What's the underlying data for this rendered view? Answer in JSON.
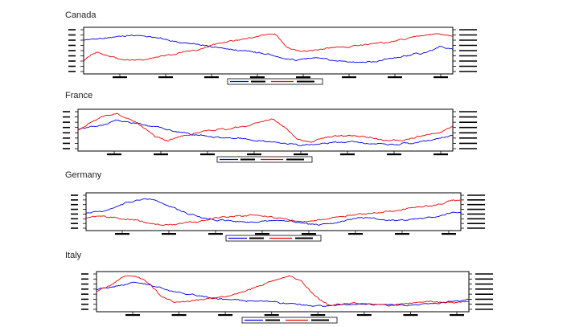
{
  "colors": {
    "series_a": "#0000ee",
    "series_b": "#ee0000",
    "axis": "#000000",
    "background": "#ffffff"
  },
  "chart_data": [
    {
      "type": "line",
      "title": "Canada",
      "dual_axis": true,
      "legend_placement": "bottom-center",
      "left_range": [
        0,
        1
      ],
      "right_range": [
        0,
        1
      ],
      "series": [
        {
          "color": "#0000ee",
          "axis": "left",
          "values": [
            0.76,
            0.78,
            0.82,
            0.85,
            0.88,
            0.85,
            0.8,
            0.72,
            0.68,
            0.66,
            0.6,
            0.55,
            0.5,
            0.48,
            0.44,
            0.38,
            0.3,
            0.26,
            0.34,
            0.3,
            0.24,
            0.22,
            0.2,
            0.24,
            0.3,
            0.36,
            0.42,
            0.46,
            0.6,
            0.52
          ]
        },
        {
          "color": "#ee0000",
          "axis": "right",
          "values": [
            0.26,
            0.46,
            0.38,
            0.28,
            0.26,
            0.3,
            0.36,
            0.4,
            0.48,
            0.52,
            0.62,
            0.7,
            0.76,
            0.8,
            0.88,
            0.92,
            0.58,
            0.48,
            0.5,
            0.56,
            0.58,
            0.6,
            0.64,
            0.68,
            0.7,
            0.78,
            0.84,
            0.88,
            0.9,
            0.84
          ]
        }
      ]
    },
    {
      "type": "line",
      "title": "France",
      "dual_axis": true,
      "legend_placement": "bottom-center",
      "left_range": [
        0,
        1
      ],
      "right_range": [
        0,
        1
      ],
      "series": [
        {
          "color": "#0000ee",
          "axis": "left",
          "values": [
            0.52,
            0.58,
            0.66,
            0.78,
            0.72,
            0.66,
            0.58,
            0.5,
            0.44,
            0.38,
            0.34,
            0.3,
            0.28,
            0.26,
            0.22,
            0.18,
            0.14,
            0.1,
            0.1,
            0.14,
            0.18,
            0.18,
            0.16,
            0.14,
            0.12,
            0.14,
            0.16,
            0.2,
            0.28,
            0.36
          ]
        },
        {
          "color": "#ee0000",
          "axis": "right",
          "values": [
            0.5,
            0.72,
            0.88,
            0.96,
            0.8,
            0.6,
            0.32,
            0.22,
            0.34,
            0.42,
            0.48,
            0.52,
            0.56,
            0.62,
            0.72,
            0.8,
            0.58,
            0.26,
            0.18,
            0.3,
            0.34,
            0.36,
            0.32,
            0.28,
            0.22,
            0.24,
            0.3,
            0.38,
            0.44,
            0.6
          ]
        }
      ]
    },
    {
      "type": "line",
      "title": "Germany",
      "dual_axis": true,
      "legend_placement": "bottom-center",
      "left_range": [
        0,
        1
      ],
      "right_range": [
        0,
        1
      ],
      "series": [
        {
          "color": "#0000ee",
          "axis": "left",
          "values": [
            0.44,
            0.5,
            0.6,
            0.76,
            0.84,
            0.88,
            0.74,
            0.58,
            0.44,
            0.32,
            0.26,
            0.22,
            0.2,
            0.2,
            0.22,
            0.24,
            0.2,
            0.14,
            0.1,
            0.14,
            0.24,
            0.3,
            0.32,
            0.26,
            0.22,
            0.26,
            0.3,
            0.36,
            0.44,
            0.5
          ]
        },
        {
          "color": "#ee0000",
          "axis": "right",
          "values": [
            0.3,
            0.38,
            0.34,
            0.28,
            0.24,
            0.14,
            0.08,
            0.12,
            0.18,
            0.24,
            0.32,
            0.36,
            0.36,
            0.4,
            0.34,
            0.3,
            0.24,
            0.2,
            0.26,
            0.32,
            0.36,
            0.42,
            0.44,
            0.48,
            0.54,
            0.6,
            0.64,
            0.7,
            0.8,
            0.88
          ]
        }
      ]
    },
    {
      "type": "line",
      "title": "Italy",
      "dual_axis": true,
      "legend_placement": "bottom-center",
      "left_range": [
        0,
        1
      ],
      "right_range": [
        0,
        1
      ],
      "series": [
        {
          "color": "#0000ee",
          "axis": "left",
          "values": [
            0.55,
            0.6,
            0.68,
            0.78,
            0.7,
            0.6,
            0.5,
            0.44,
            0.38,
            0.32,
            0.28,
            0.26,
            0.24,
            0.22,
            0.2,
            0.16,
            0.12,
            0.1,
            0.1,
            0.12,
            0.14,
            0.14,
            0.12,
            0.12,
            0.12,
            0.14,
            0.16,
            0.2,
            0.24,
            0.3
          ]
        },
        {
          "color": "#ee0000",
          "axis": "right",
          "values": [
            0.5,
            0.66,
            0.9,
            0.96,
            0.76,
            0.4,
            0.2,
            0.22,
            0.28,
            0.32,
            0.36,
            0.46,
            0.56,
            0.72,
            0.84,
            0.94,
            0.78,
            0.38,
            0.12,
            0.14,
            0.18,
            0.16,
            0.14,
            0.12,
            0.16,
            0.2,
            0.22,
            0.2,
            0.2,
            0.24
          ]
        }
      ]
    }
  ]
}
